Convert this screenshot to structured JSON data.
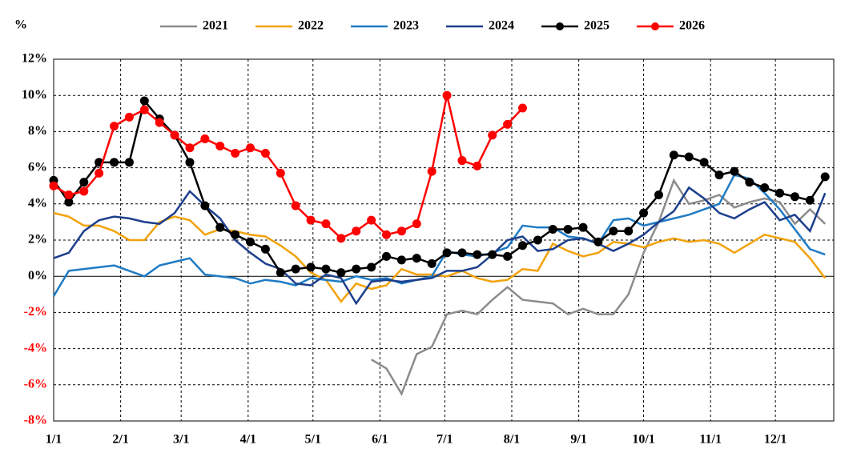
{
  "chart_data": {
    "type": "line",
    "ylabel": "%",
    "x": [
      1,
      8,
      15,
      22,
      29,
      36,
      43,
      50,
      57,
      64,
      71,
      78,
      85,
      92,
      99,
      106,
      113,
      120,
      127,
      134,
      141,
      148,
      155,
      162,
      169,
      176,
      183,
      190,
      197,
      204,
      211,
      218,
      225,
      232,
      239,
      246,
      253,
      260,
      267,
      274,
      281,
      288,
      295,
      302,
      309,
      316,
      323,
      330,
      337,
      344,
      351,
      358
    ],
    "xlim": [
      1,
      362
    ],
    "xticks": [
      {
        "value": 1,
        "label": "1/1"
      },
      {
        "value": 32,
        "label": "2/1"
      },
      {
        "value": 60,
        "label": "3/1"
      },
      {
        "value": 91,
        "label": "4/1"
      },
      {
        "value": 121,
        "label": "5/1"
      },
      {
        "value": 152,
        "label": "6/1"
      },
      {
        "value": 182,
        "label": "7/1"
      },
      {
        "value": 213,
        "label": "8/1"
      },
      {
        "value": 244,
        "label": "9/1"
      },
      {
        "value": 274,
        "label": "10/1"
      },
      {
        "value": 305,
        "label": "11/1"
      },
      {
        "value": 335,
        "label": "12/1"
      }
    ],
    "ylim": [
      -8,
      12
    ],
    "yticks": [
      {
        "value": -8,
        "label": "-8%"
      },
      {
        "value": -6,
        "label": "-6%"
      },
      {
        "value": -4,
        "label": "-4%"
      },
      {
        "value": -2,
        "label": "-2%"
      },
      {
        "value": 0,
        "label": "0%"
      },
      {
        "value": 2,
        "label": "2%"
      },
      {
        "value": 4,
        "label": "4%"
      },
      {
        "value": 6,
        "label": "6%"
      },
      {
        "value": 8,
        "label": "8%"
      },
      {
        "value": 10,
        "label": "10%"
      },
      {
        "value": 12,
        "label": "12%"
      }
    ],
    "negative_tick_color": "#ff0000",
    "grid": true,
    "series": [
      {
        "name": "2021",
        "color": "#8c8c8c",
        "marker": false,
        "values": [
          null,
          null,
          null,
          null,
          null,
          null,
          null,
          null,
          null,
          null,
          null,
          null,
          null,
          null,
          null,
          null,
          null,
          null,
          null,
          null,
          null,
          -4.6,
          -5.1,
          -6.5,
          -4.3,
          -3.9,
          -2.1,
          -1.9,
          -2.1,
          -1.3,
          -0.6,
          -1.3,
          -1.4,
          -1.5,
          -2.1,
          -1.8,
          -2.1,
          -2.1,
          -1.0,
          1.3,
          3.0,
          5.3,
          4.0,
          4.2,
          4.5,
          3.8,
          4.1,
          4.3,
          4.1,
          2.9,
          3.7,
          2.9
        ]
      },
      {
        "name": "2022",
        "color": "#f2a20c",
        "marker": false,
        "values": [
          3.5,
          3.3,
          2.8,
          2.8,
          2.5,
          2.0,
          2.0,
          3.0,
          3.3,
          3.1,
          2.3,
          2.6,
          2.5,
          2.3,
          2.2,
          1.7,
          1.1,
          0.2,
          -0.2,
          -1.4,
          -0.4,
          -0.7,
          -0.5,
          0.4,
          0.1,
          0.1,
          0.0,
          0.3,
          -0.1,
          -0.3,
          -0.2,
          0.4,
          0.3,
          1.8,
          1.4,
          1.1,
          1.3,
          1.9,
          1.8,
          1.6,
          1.9,
          2.1,
          1.9,
          2.0,
          1.8,
          1.3,
          1.8,
          2.3,
          2.1,
          1.9,
          1.0,
          -0.1
        ]
      },
      {
        "name": "2023",
        "color": "#1f7bc4",
        "marker": false,
        "values": [
          -1.1,
          0.3,
          0.4,
          0.5,
          0.6,
          0.3,
          0.0,
          0.6,
          0.8,
          1.0,
          0.1,
          0.0,
          -0.1,
          -0.4,
          -0.2,
          -0.3,
          -0.5,
          -0.1,
          -0.2,
          -0.3,
          0.0,
          -0.2,
          -0.1,
          -0.4,
          -0.2,
          0.0,
          1.4,
          1.2,
          1.1,
          1.3,
          1.6,
          2.8,
          2.7,
          2.7,
          2.2,
          2.1,
          1.8,
          3.1,
          3.2,
          2.8,
          3.0,
          3.2,
          3.4,
          3.7,
          4.0,
          5.6,
          5.4,
          4.6,
          3.7,
          2.6,
          1.5,
          1.2
        ]
      },
      {
        "name": "2024",
        "color": "#1c3f8c",
        "marker": false,
        "values": [
          1.0,
          1.3,
          2.5,
          3.1,
          3.3,
          3.2,
          3.0,
          2.9,
          3.5,
          4.7,
          3.9,
          3.2,
          2.0,
          1.3,
          0.7,
          0.4,
          -0.4,
          -0.5,
          0.1,
          -0.1,
          -1.5,
          -0.3,
          -0.2,
          -0.3,
          -0.2,
          -0.1,
          0.3,
          0.3,
          0.5,
          1.2,
          2.0,
          2.2,
          1.4,
          1.5,
          2.0,
          2.1,
          1.8,
          1.4,
          1.8,
          2.3,
          3.0,
          3.6,
          4.9,
          4.3,
          3.5,
          3.2,
          3.7,
          4.1,
          3.1,
          3.4,
          2.5,
          4.6
        ]
      },
      {
        "name": "2025",
        "color": "#000000",
        "marker": true,
        "values": [
          5.3,
          4.1,
          5.2,
          6.3,
          6.3,
          6.3,
          9.7,
          8.7,
          7.8,
          6.3,
          3.9,
          2.7,
          2.3,
          1.9,
          1.5,
          0.2,
          0.4,
          0.5,
          0.4,
          0.2,
          0.4,
          0.5,
          1.1,
          0.9,
          1.0,
          0.7,
          1.3,
          1.3,
          1.2,
          1.2,
          1.1,
          1.7,
          2.0,
          2.6,
          2.6,
          2.7,
          1.9,
          2.5,
          2.5,
          3.5,
          4.5,
          6.7,
          6.6,
          6.3,
          5.6,
          5.8,
          5.2,
          4.9,
          4.6,
          4.4,
          4.2,
          5.5
        ]
      },
      {
        "name": "2026",
        "color": "#ff0000",
        "marker": true,
        "values": [
          5.0,
          4.5,
          4.7,
          5.7,
          8.3,
          8.8,
          9.2,
          8.5,
          7.8,
          7.1,
          7.6,
          7.2,
          6.8,
          7.1,
          6.8,
          5.7,
          3.9,
          3.1,
          2.9,
          2.1,
          2.5,
          3.1,
          2.3,
          2.5,
          2.9,
          5.8,
          10.0,
          6.4,
          6.1,
          7.8,
          8.4,
          9.3,
          null,
          null,
          null,
          null,
          null,
          null,
          null,
          null,
          null,
          null,
          null,
          null,
          null,
          null,
          null,
          null,
          null,
          null,
          null,
          null
        ]
      }
    ]
  }
}
